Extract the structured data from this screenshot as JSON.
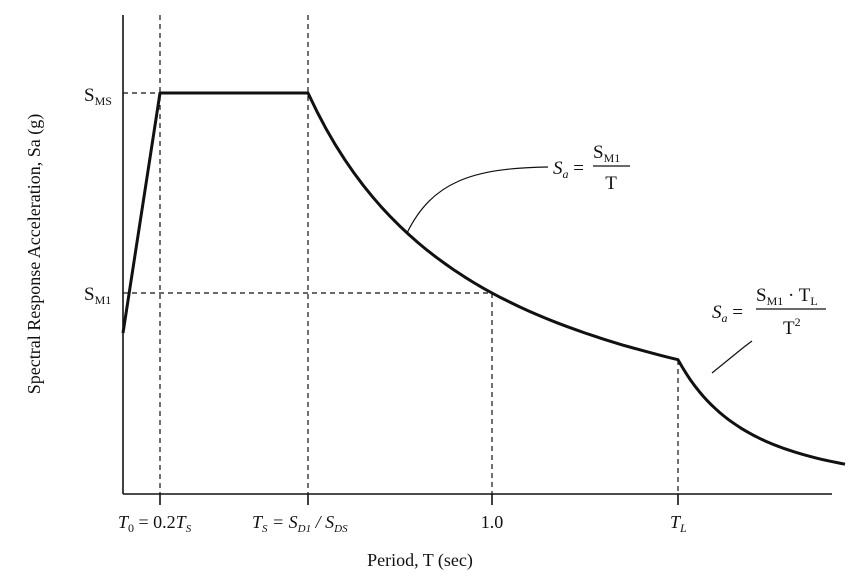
{
  "chart_data": {
    "type": "line",
    "title": "",
    "xlabel": "Period, T (sec)",
    "ylabel": "Spectral Response Acceleration, Sa (g)",
    "x_ticks": [
      {
        "main": "T",
        "sub": "0",
        "rest": " = 0.2",
        "main2": "T",
        "sub2": "S"
      },
      {
        "main": "T",
        "sub": "S",
        "rest": " = S",
        "sub2": "D1",
        "rest2": " / S",
        "sub3": "DS"
      },
      {
        "text": "1.0"
      },
      {
        "main": "T",
        "sub": "L"
      }
    ],
    "y_ticks": [
      {
        "main": "S",
        "sub": "MS"
      },
      {
        "main": "S",
        "sub": "M1"
      }
    ],
    "breakpoints": {
      "T0": 0.2,
      "TS": 1.0,
      "T_one": 2.0,
      "TL": 3.0,
      "T_end": 3.9
    },
    "levels": {
      "SMS": 1.0,
      "SM1": 0.5,
      "start": 0.4
    },
    "segments": [
      "rise 0 to T0",
      "plateau T0 to TS",
      "SM1/T from TS to TL",
      "SM1*TL/T^2 beyond TL"
    ],
    "annotations": [
      {
        "id": "eq1",
        "lhs": "S",
        "lhs_sub": "a",
        "num": "S",
        "num_sub": "M1",
        "den": "T"
      },
      {
        "id": "eq2",
        "lhs": "S",
        "lhs_sub": "a",
        "num": "S",
        "num_sub": "M1",
        "num_tail": " · T",
        "num_tail_sub": "L",
        "den": "T",
        "den_sup": "2"
      }
    ],
    "grid": false,
    "legend": "none"
  }
}
